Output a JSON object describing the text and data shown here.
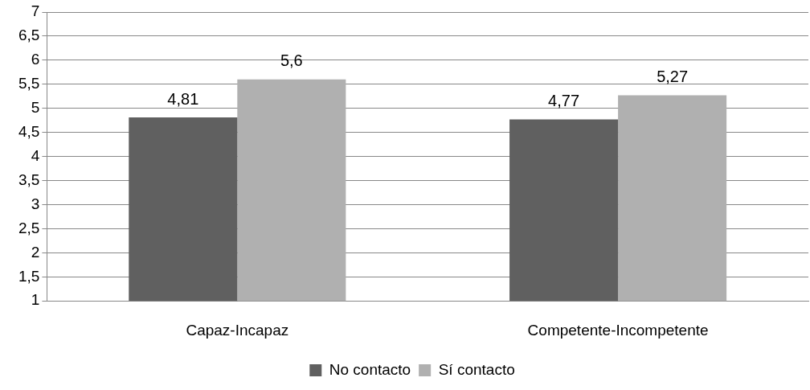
{
  "chart_data": {
    "type": "bar",
    "categories": [
      "Capaz-Incapaz",
      "Competente-Incompetente"
    ],
    "series": [
      {
        "name": "No contacto",
        "color": "#606060",
        "values": [
          4.81,
          4.77
        ],
        "value_labels": [
          "4,81",
          "4,77"
        ]
      },
      {
        "name": "Sí contacto",
        "color": "#b0b0b0",
        "values": [
          5.6,
          5.27
        ],
        "value_labels": [
          "5,6",
          "5,27"
        ]
      }
    ],
    "ylim": [
      1,
      7
    ],
    "yticks": [
      1,
      {
        "value": 1.5,
        "label": "1,5"
      },
      2,
      {
        "value": 2.5,
        "label": "2,5"
      },
      3,
      {
        "value": 3.5,
        "label": "3,5"
      },
      4,
      {
        "value": 4.5,
        "label": "4,5"
      },
      5,
      {
        "value": 5.5,
        "label": "5,5"
      },
      6,
      {
        "value": 6.5,
        "label": "6,5"
      },
      7
    ],
    "grid": "y",
    "legend": "bottom"
  }
}
